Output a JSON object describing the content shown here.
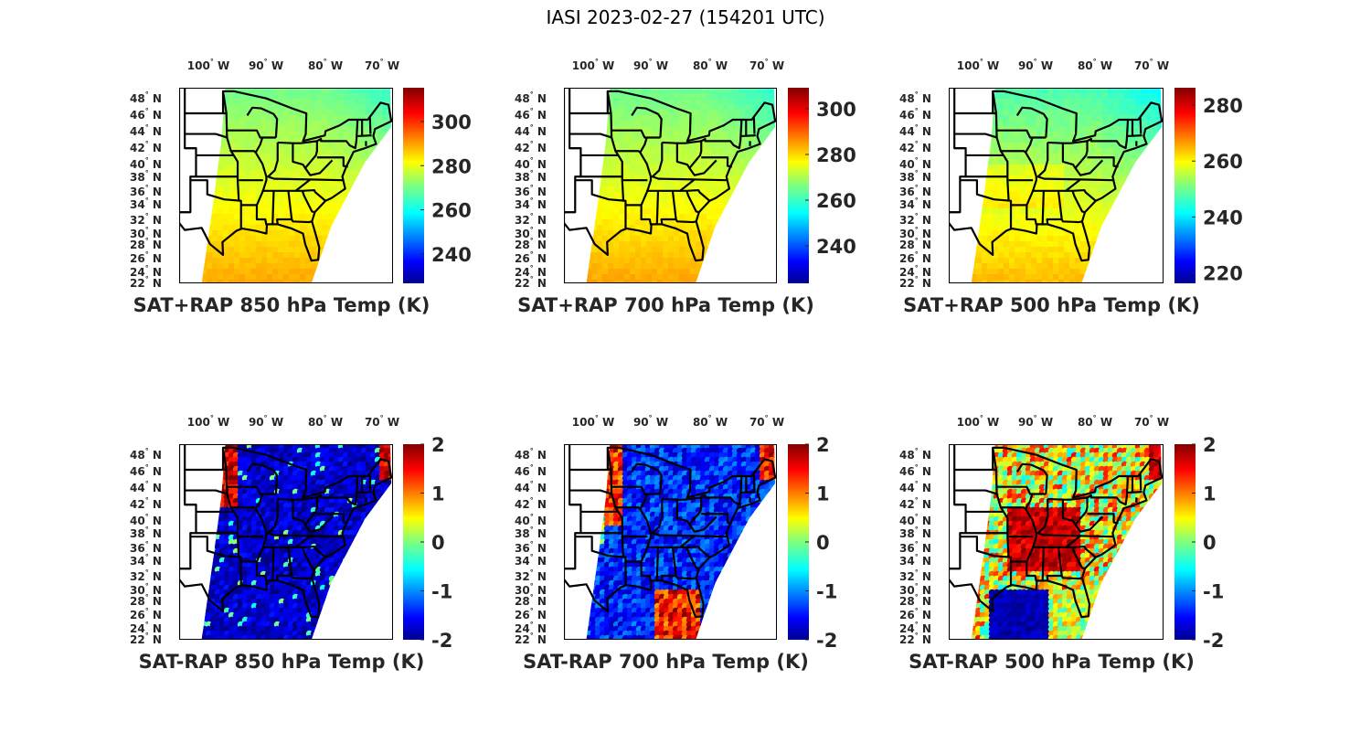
{
  "figure": {
    "title": "IASI 2023-02-27 (154201 UTC)"
  },
  "chart_data": [
    {
      "type": "heatmap",
      "title": "SAT+RAP 850 hPa Temp (K)",
      "map_region": "Central/Eastern United States (swath)",
      "lon_ticks": [
        "100° W",
        "90° W",
        "80° W",
        "70° W"
      ],
      "lat_ticks": [
        "48° N",
        "46° N",
        "44° N",
        "42° N",
        "40° N",
        "38° N",
        "36° N",
        "34° N",
        "32° N",
        "30° N",
        "28° N",
        "26° N",
        "24° N",
        "22° N"
      ],
      "colormap": "jet",
      "colorbar": {
        "ticks": [
          240,
          260,
          280,
          300
        ],
        "range": [
          226.7,
          315.3
        ],
        "label_unit": "K"
      },
      "value_summary": {
        "north": 270,
        "central": 280,
        "south": 290
      }
    },
    {
      "type": "heatmap",
      "title": "SAT+RAP 700 hPa Temp (K)",
      "map_region": "Central/Eastern United States (swath)",
      "lon_ticks": [
        "100° W",
        "90° W",
        "80° W",
        "70° W"
      ],
      "lat_ticks": [
        "48° N",
        "46° N",
        "44° N",
        "42° N",
        "40° N",
        "38° N",
        "36° N",
        "34° N",
        "32° N",
        "30° N",
        "28° N",
        "26° N",
        "24° N",
        "22° N"
      ],
      "colormap": "jet",
      "colorbar": {
        "ticks": [
          240,
          260,
          280,
          300
        ],
        "range": [
          223.6,
          309.2
        ],
        "label_unit": "K"
      },
      "value_summary": {
        "north": 265,
        "central": 277,
        "south": 285
      }
    },
    {
      "type": "heatmap",
      "title": "SAT+RAP 500 hPa Temp (K)",
      "map_region": "Central/Eastern United States (swath)",
      "lon_ticks": [
        "100° W",
        "90° W",
        "80° W",
        "70° W"
      ],
      "lat_ticks": [
        "48° N",
        "46° N",
        "44° N",
        "42° N",
        "40° N",
        "38° N",
        "36° N",
        "34° N",
        "32° N",
        "30° N",
        "28° N",
        "26° N",
        "24° N",
        "22° N"
      ],
      "colormap": "jet",
      "colorbar": {
        "ticks": [
          220,
          240,
          260,
          280
        ],
        "range": [
          216.3,
          286.2
        ],
        "label_unit": "K"
      },
      "value_summary": {
        "north": 248,
        "central": 258,
        "south": 265
      }
    },
    {
      "type": "heatmap",
      "title": "SAT-RAP 850 hPa Temp (K)",
      "map_region": "Central/Eastern United States (swath)",
      "lon_ticks": [
        "100° W",
        "90° W",
        "80° W",
        "70° W"
      ],
      "lat_ticks": [
        "48° N",
        "46° N",
        "44° N",
        "42° N",
        "40° N",
        "38° N",
        "36° N",
        "34° N",
        "32° N",
        "30° N",
        "28° N",
        "26° N",
        "24° N",
        "22° N"
      ],
      "colormap": "jet",
      "colorbar": {
        "ticks": [
          -2,
          -1,
          0,
          1,
          2
        ],
        "range": [
          -2,
          2
        ],
        "label_unit": "K"
      },
      "value_summary": {
        "dominant": -2,
        "northwest_strip": 1.8,
        "northeast": 1.5
      }
    },
    {
      "type": "heatmap",
      "title": "SAT-RAP 700 hPa Temp (K)",
      "map_region": "Central/Eastern United States (swath)",
      "lon_ticks": [
        "100° W",
        "90° W",
        "80° W",
        "70° W"
      ],
      "lat_ticks": [
        "48° N",
        "46° N",
        "44° N",
        "42° N",
        "40° N",
        "38° N",
        "36° N",
        "34° N",
        "32° N",
        "30° N",
        "28° N",
        "26° N",
        "24° N",
        "22° N"
      ],
      "colormap": "jet",
      "colorbar": {
        "ticks": [
          -2,
          -1,
          0,
          1,
          2
        ],
        "range": [
          -2,
          2
        ],
        "label_unit": "K"
      },
      "value_summary": {
        "dominant": -1.5,
        "northwest": 0.5,
        "gulf_southeast": 1.5
      }
    },
    {
      "type": "heatmap",
      "title": "SAT-RAP 500 hPa Temp (K)",
      "map_region": "Central/Eastern United States (swath)",
      "lon_ticks": [
        "100° W",
        "90° W",
        "80° W",
        "70° W"
      ],
      "lat_ticks": [
        "48° N",
        "46° N",
        "44° N",
        "42° N",
        "40° N",
        "38° N",
        "36° N",
        "34° N",
        "32° N",
        "30° N",
        "28° N",
        "26° N",
        "24° N",
        "22° N"
      ],
      "colormap": "jet",
      "colorbar": {
        "ticks": [
          -2,
          -1,
          0,
          1,
          2
        ],
        "range": [
          -2,
          2
        ],
        "label_unit": "K"
      },
      "value_summary": {
        "central": 1.8,
        "west": 0.5,
        "gulf": -2,
        "far_south": 0.3
      }
    }
  ]
}
